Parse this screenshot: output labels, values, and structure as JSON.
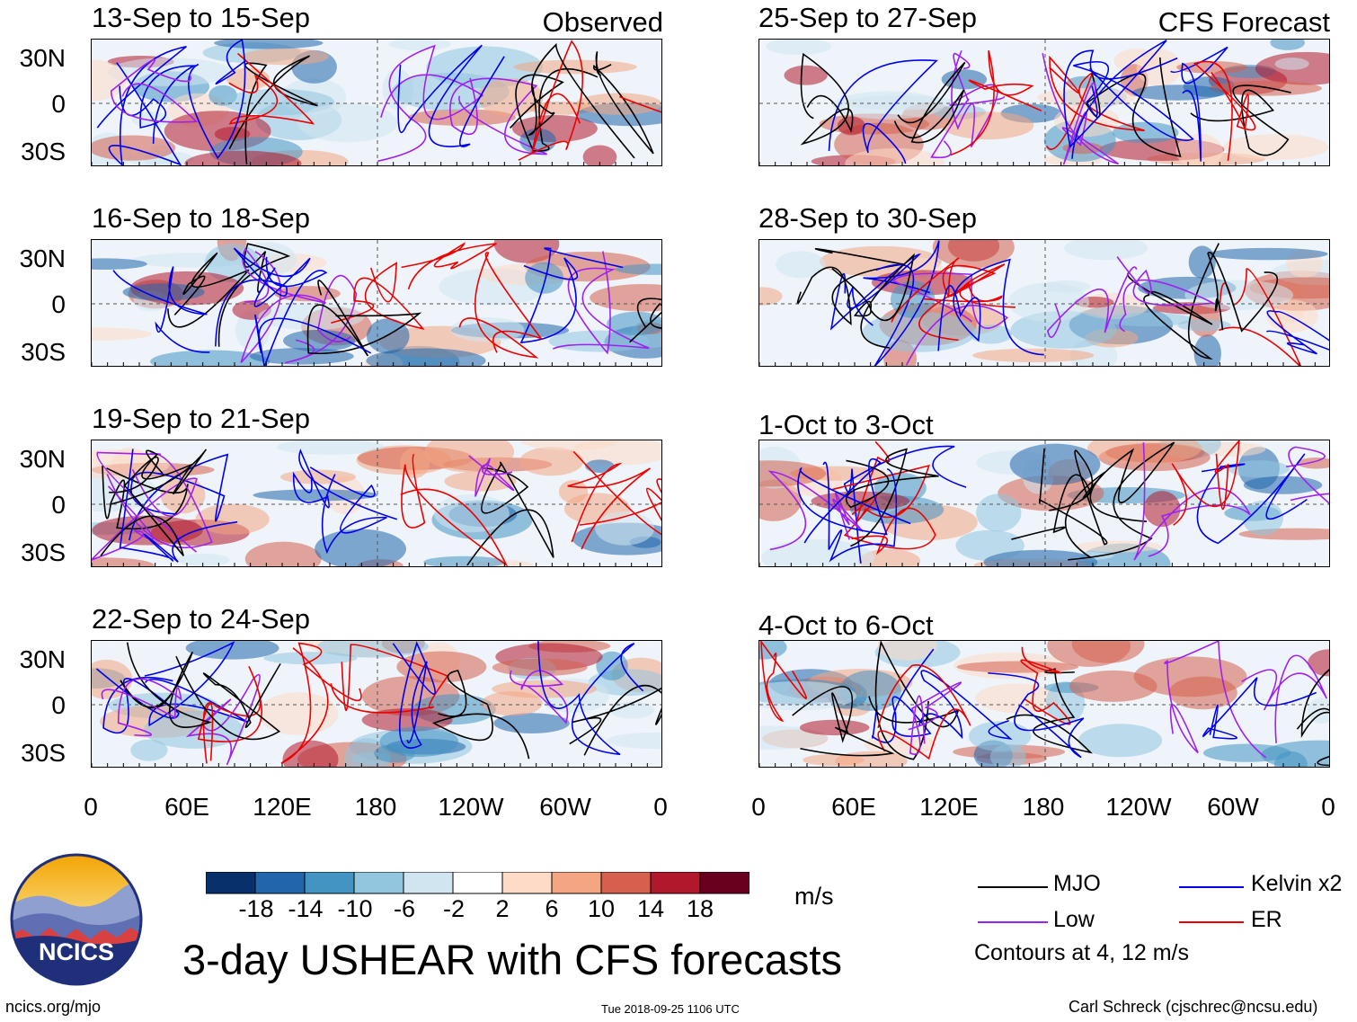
{
  "header": {
    "observed_label": "Observed",
    "forecast_label": "CFS Forecast"
  },
  "panels": [
    {
      "title": "13-Sep to 15-Sep",
      "side": "observed"
    },
    {
      "title": "16-Sep to 18-Sep",
      "side": "observed"
    },
    {
      "title": "19-Sep to 21-Sep",
      "side": "observed"
    },
    {
      "title": "22-Sep to 24-Sep",
      "side": "observed"
    },
    {
      "title": "25-Sep to 27-Sep",
      "side": "forecast"
    },
    {
      "title": "28-Sep to 30-Sep",
      "side": "forecast"
    },
    {
      "title": "1-Oct to 3-Oct",
      "side": "forecast"
    },
    {
      "title": "4-Oct to 6-Oct",
      "side": "forecast"
    }
  ],
  "axes": {
    "lat_labels": [
      "30N",
      "0",
      "30S"
    ],
    "lon_labels": [
      "0",
      "60E",
      "120E",
      "180",
      "120W",
      "60W",
      "0"
    ]
  },
  "colorbar": {
    "labels": [
      "-18",
      "-14",
      "-10",
      "-6",
      "-2",
      "2",
      "6",
      "10",
      "14",
      "18"
    ],
    "units": "m/s",
    "colors": [
      "#08306b",
      "#2166ac",
      "#4393c3",
      "#92c5de",
      "#d1e5f0",
      "#ffffff",
      "#fddbc7",
      "#f4a582",
      "#d6604d",
      "#b2182b",
      "#67001f"
    ]
  },
  "legend": {
    "items": [
      {
        "label": "MJO",
        "color": "#000000"
      },
      {
        "label": "Kelvin x2",
        "color": "#0000ee"
      },
      {
        "label": "Low",
        "color": "#a020f0"
      },
      {
        "label": "ER",
        "color": "#ee0000"
      }
    ],
    "contour_note": "Contours at 4, 12 m/s"
  },
  "footer": {
    "main_title": "3-day USHEAR with CFS forecasts",
    "org": "NCICS",
    "website": "ncics.org/mjo",
    "timestamp": "Tue 2018-09-25 1106 UTC",
    "credit": "Carl Schreck (cjschrec@ncsu.edu)"
  }
}
